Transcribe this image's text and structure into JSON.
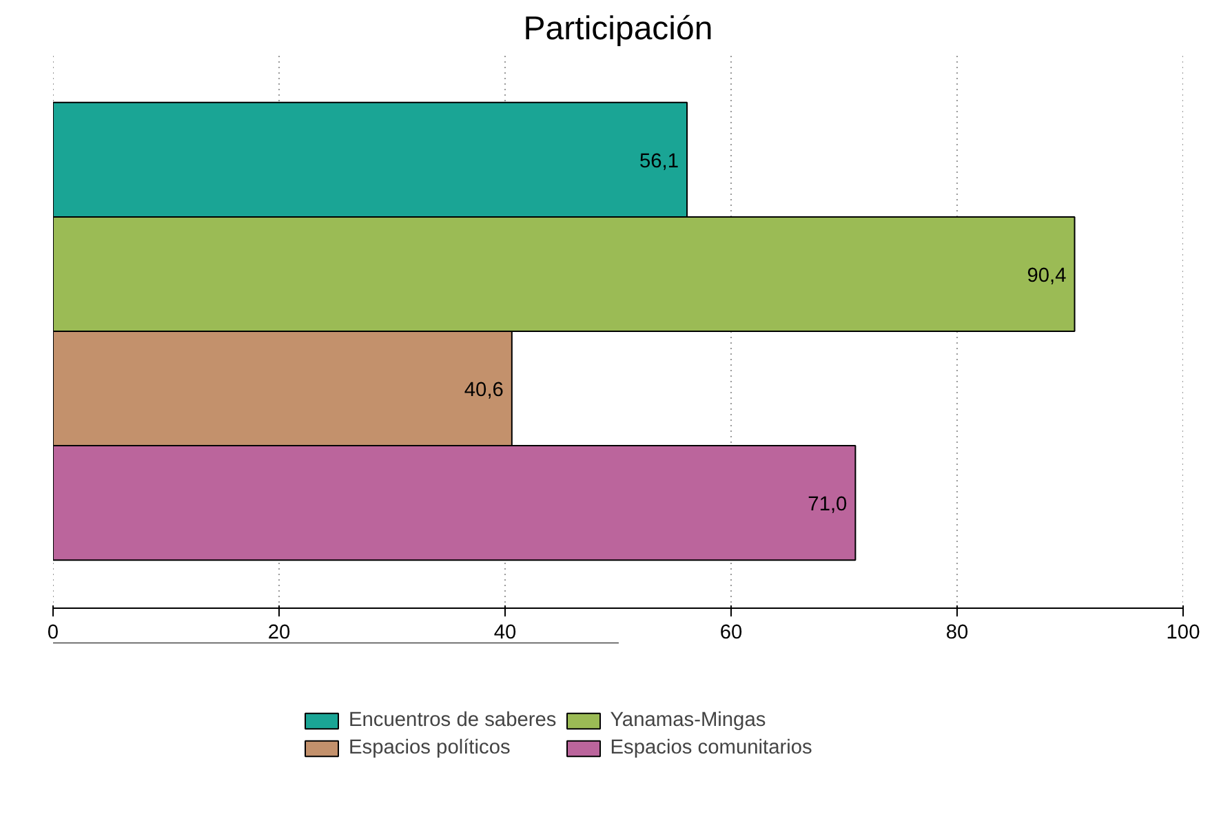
{
  "chart_data": {
    "type": "bar",
    "title": "Participación",
    "orientation": "horizontal",
    "categories": [
      null
    ],
    "series": [
      {
        "name": "Encuentros de saberes",
        "color": "#1aa595",
        "values": [
          56.1
        ],
        "value_labels": [
          "56,1"
        ]
      },
      {
        "name": "Yanamas-Mingas",
        "color": "#9bbb55",
        "values": [
          90.4
        ],
        "value_labels": [
          "90,4"
        ]
      },
      {
        "name": "Espacios políticos",
        "color": "#c3916c",
        "values": [
          40.6
        ],
        "value_labels": [
          "40,6"
        ]
      },
      {
        "name": "Espacios comunitarios",
        "color": "#bb659c",
        "values": [
          71.0
        ],
        "value_labels": [
          "71,0"
        ]
      }
    ],
    "xlim": [
      0,
      100
    ],
    "xticks": [
      0,
      20,
      40,
      60,
      80,
      100
    ],
    "grid": "x",
    "legend": "bottom"
  }
}
